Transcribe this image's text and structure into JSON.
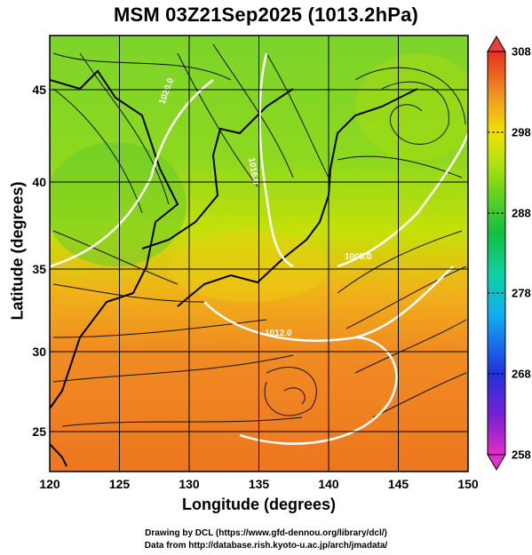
{
  "title": "MSM 03Z21Sep2025 (1013.2hPa)",
  "x_axis": {
    "label": "Longitude (degrees)",
    "ticks": [
      "120",
      "125",
      "130",
      "135",
      "140",
      "145",
      "150"
    ]
  },
  "y_axis": {
    "label": "Latitude (degrees)",
    "ticks": [
      "25",
      "30",
      "35",
      "40",
      "45"
    ]
  },
  "colorbar": {
    "ticks": [
      "258",
      "268",
      "278",
      "288",
      "298",
      "308"
    ],
    "colors": [
      "#e030c8",
      "#8020d0",
      "#2030e0",
      "#10b0f0",
      "#10d0a0",
      "#10c040",
      "#60d020",
      "#b0e010",
      "#f0e000",
      "#f0b020",
      "#f08020",
      "#e84020"
    ]
  },
  "contours": [
    {
      "label": "1008.0"
    },
    {
      "label": "1012.0"
    },
    {
      "label": "1016.0"
    },
    {
      "label": "1020.0"
    }
  ],
  "credits": {
    "line1": "Drawing by DCL (https://www.gfd-dennou.org/library/dcl/)",
    "line2": "Data from http://database.rish.kyoto-u.ac.jp/arch/jmadata/"
  }
}
